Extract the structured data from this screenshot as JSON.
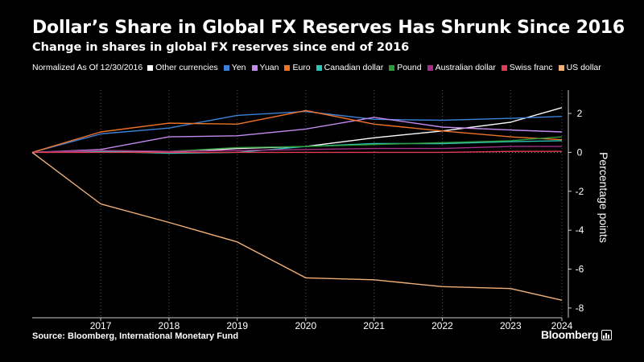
{
  "header": {
    "title": "Dollar’s Share in Global FX Reserves Has Shrunk Since 2016",
    "subtitle": "Change in shares in global FX reserves since end of 2016"
  },
  "legend": {
    "note": "Normalized As Of 12/30/2016"
  },
  "footer": {
    "source": "Source: Bloomberg, International Monetary Fund",
    "logo": "Bloomberg"
  },
  "chart_data": {
    "type": "line",
    "title": "Dollar’s Share in Global FX Reserves Has Shrunk Since 2016",
    "subtitle": "Change in shares in global FX reserves since end of 2016",
    "xlabel": "",
    "ylabel": "Percentage points",
    "x": [
      "2016-12-30",
      "2017-12-31",
      "2018-12-31",
      "2019-12-31",
      "2020-12-31",
      "2021-12-31",
      "2022-12-31",
      "2023-12-31",
      "2024-09-30"
    ],
    "x_tick_labels": [
      "2017",
      "2018",
      "2019",
      "2020",
      "2021",
      "2022",
      "2023",
      "2024"
    ],
    "ylim": [
      -8.5,
      3.2
    ],
    "y_ticks": [
      2,
      0,
      -2,
      -4,
      -6,
      -8
    ],
    "y_axis_side": "right",
    "grid": "vertical dotted",
    "legend_position": "top",
    "series": [
      {
        "name": "Other currencies",
        "color": "#ffffff",
        "values": [
          0,
          0.1,
          0.0,
          0.2,
          0.3,
          0.75,
          1.1,
          1.55,
          2.3
        ]
      },
      {
        "name": "Yen",
        "color": "#3b82d6",
        "values": [
          0,
          0.95,
          1.25,
          1.9,
          2.1,
          1.7,
          1.65,
          1.75,
          1.85
        ]
      },
      {
        "name": "Yuan",
        "color": "#c58af0",
        "values": [
          0,
          0.15,
          0.8,
          0.85,
          1.2,
          1.8,
          1.3,
          1.15,
          1.05
        ]
      },
      {
        "name": "Euro",
        "color": "#f07428",
        "values": [
          0,
          1.05,
          1.5,
          1.45,
          2.15,
          1.45,
          1.1,
          0.8,
          0.65
        ]
      },
      {
        "name": "Canadian dollar",
        "color": "#2ec4b6",
        "values": [
          0,
          0.05,
          -0.05,
          0.0,
          0.3,
          0.45,
          0.45,
          0.55,
          0.6
        ]
      },
      {
        "name": "Pound",
        "color": "#2e9b3a",
        "values": [
          0,
          0.1,
          0.05,
          0.25,
          0.3,
          0.4,
          0.5,
          0.6,
          0.8
        ]
      },
      {
        "name": "Australian dollar",
        "color": "#a0308a",
        "values": [
          0,
          0.1,
          0.05,
          0.1,
          0.15,
          0.2,
          0.2,
          0.3,
          0.3
        ]
      },
      {
        "name": "Swiss franc",
        "color": "#e23b55",
        "values": [
          0,
          0.0,
          0.0,
          0.0,
          0.0,
          0.0,
          0.0,
          0.05,
          0.05
        ]
      },
      {
        "name": "US dollar",
        "color": "#f0b07a",
        "values": [
          0,
          -2.65,
          -3.6,
          -4.6,
          -6.45,
          -6.55,
          -6.9,
          -7.0,
          -7.6
        ]
      }
    ]
  }
}
